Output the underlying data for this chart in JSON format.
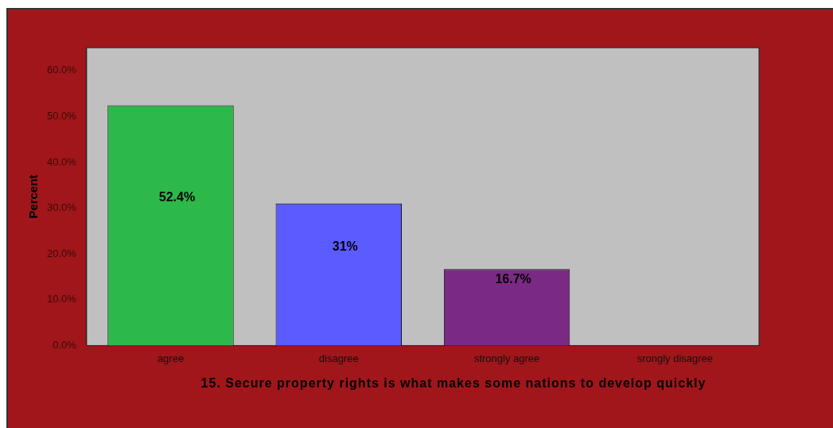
{
  "chart_data": {
    "type": "bar",
    "xlabel": "15.  Secure property rights is what makes some nations to develop quickly",
    "ylabel": "Percent",
    "categories": [
      "agree",
      "disagree",
      "strongly agree",
      "srongly disagree"
    ],
    "values": [
      52.4,
      31,
      16.7,
      0
    ],
    "colors": [
      "#2db84a",
      "#5b5cff",
      "#7b2a84",
      "#7b2a84"
    ],
    "value_labels": [
      "52.4%",
      "31%",
      "16.7%",
      null
    ],
    "ylim": [
      0,
      65
    ],
    "yticks": [
      {
        "value": 0,
        "label": "0.0%"
      },
      {
        "value": 10,
        "label": "10.0%"
      },
      {
        "value": 20,
        "label": "20.0%"
      },
      {
        "value": 30,
        "label": "30.0%"
      },
      {
        "value": 40,
        "label": "40.0%"
      },
      {
        "value": 50,
        "label": "50.0%"
      },
      {
        "value": 60,
        "label": "60.0%"
      }
    ],
    "grid": false,
    "legend": false
  }
}
